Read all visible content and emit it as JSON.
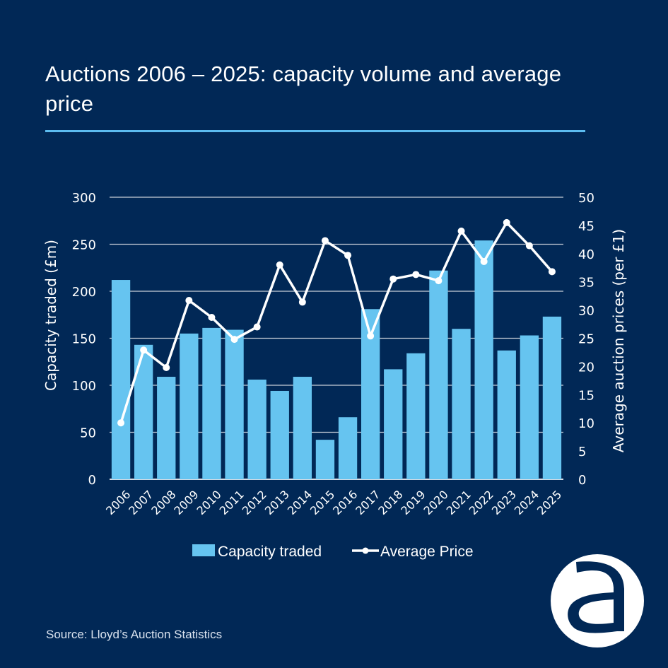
{
  "title": "Auctions 2006 – 2025: capacity volume and average price",
  "source": "Source: Lloyd’s Auction Statistics",
  "logo": {
    "icon": "a-logo-icon",
    "letter": "a"
  },
  "colors": {
    "background": "#012856",
    "bar": "#66c4f0",
    "line": "#ffffff",
    "accent_rule": "#5cbcf0",
    "gridline": "#c8ced8"
  },
  "chart_data": {
    "type": "bar",
    "title": "Auctions 2006 – 2025: capacity volume and average price",
    "categories": [
      "2006",
      "2007",
      "2008",
      "2009",
      "2010",
      "2011",
      "2012",
      "2013",
      "2014",
      "2015",
      "2016",
      "2017",
      "2018",
      "2019",
      "2020",
      "2021",
      "2022",
      "2023",
      "2024",
      "2025"
    ],
    "series": [
      {
        "name": "Capacity traded",
        "type": "bar",
        "axis": "left",
        "values": [
          212,
          143,
          109,
          155,
          161,
          159,
          106,
          94,
          109,
          42,
          66,
          181,
          117,
          134,
          222,
          160,
          254,
          137,
          153,
          173
        ]
      },
      {
        "name": "Average Price",
        "type": "line",
        "axis": "right",
        "values": [
          10.0,
          22.9,
          19.8,
          31.7,
          28.7,
          24.8,
          27.0,
          38.0,
          31.4,
          42.3,
          39.7,
          25.4,
          35.5,
          36.3,
          35.2,
          44.0,
          38.6,
          45.5,
          41.4,
          36.8
        ]
      }
    ],
    "xlabel": "",
    "ylabel": "Capacity traded (£m)",
    "ylabel_right": "Average auction prices (per £1)",
    "ylim": [
      0,
      300
    ],
    "ylim_right": [
      0,
      50
    ],
    "yticks": [
      0,
      50,
      100,
      150,
      200,
      250,
      300
    ],
    "yticks_right": [
      0,
      5,
      10,
      15,
      20,
      25,
      30,
      35,
      40,
      45,
      50
    ],
    "grid": true,
    "legend": {
      "placement": "bottom",
      "entries": [
        "Capacity traded",
        "Average Price"
      ]
    }
  }
}
